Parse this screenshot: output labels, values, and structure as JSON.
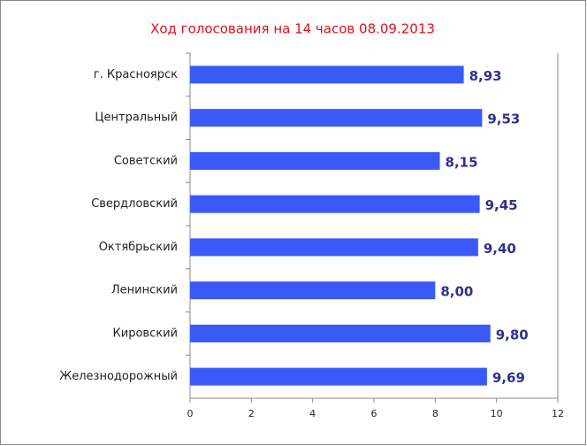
{
  "chart_data": {
    "type": "bar",
    "orientation": "horizontal",
    "title": "Ход голосования на 14 часов 08.09.2013",
    "categories": [
      "г. Красноярск",
      "Центральный",
      "Советский",
      "Свердловский",
      "Октябрьский",
      "Ленинский",
      "Кировский",
      "Железнодорожный"
    ],
    "values": [
      8.93,
      9.53,
      8.15,
      9.45,
      9.4,
      8.0,
      9.8,
      9.69
    ],
    "value_labels": [
      "8,93",
      "9,53",
      "8,15",
      "9,45",
      "9,40",
      "8,00",
      "9,80",
      "9,69"
    ],
    "color": "#3a5af8",
    "xlim": [
      0,
      12
    ],
    "xticks": [
      0,
      2,
      4,
      6,
      8,
      10,
      12
    ]
  }
}
